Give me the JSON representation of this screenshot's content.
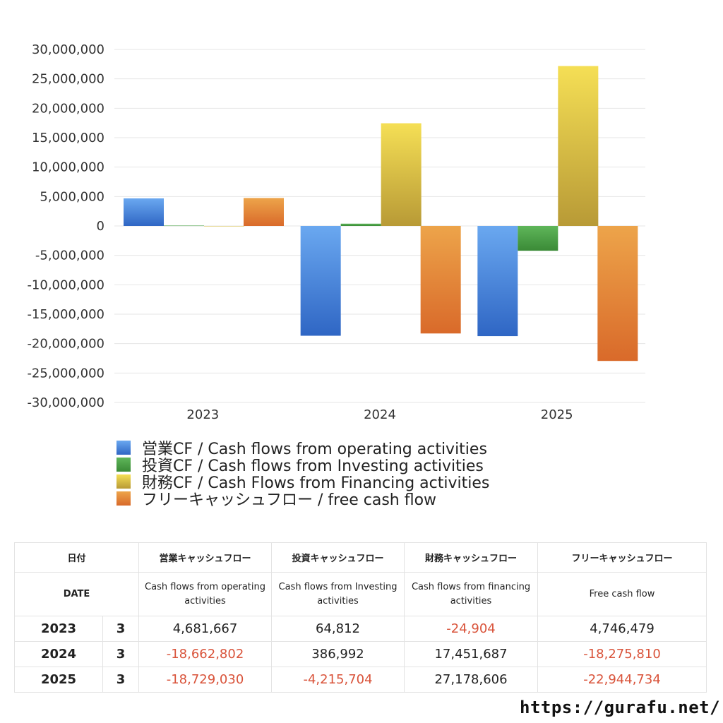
{
  "chart_data": {
    "type": "bar",
    "categories": [
      "2023",
      "2024",
      "2025"
    ],
    "ylim": [
      -30000000,
      30000000
    ],
    "yticks": [
      "30,000,000",
      "25,000,000",
      "20,000,000",
      "15,000,000",
      "10,000,000",
      "5,000,000",
      "0",
      "-5,000,000",
      "-10,000,000",
      "-15,000,000",
      "-20,000,000",
      "-25,000,000",
      "-30,000,000"
    ],
    "grid": true,
    "legend_position": "bottom",
    "series": [
      {
        "name": "営業CF / Cash flows from operating activities",
        "values": [
          4681667,
          -18662802,
          -18729030
        ],
        "color_top": "#6aa8f0",
        "color_bottom": "#2f66c4"
      },
      {
        "name": "投資CF / Cash flows from Investing activities",
        "values": [
          64812,
          386992,
          -4215704
        ],
        "color_top": "#5fb65a",
        "color_bottom": "#3a8a36"
      },
      {
        "name": "財務CF / Cash Flows from Financing activities",
        "values": [
          -24904,
          17451687,
          27178606
        ],
        "color_top": "#f5df55",
        "color_bottom": "#b89a36"
      },
      {
        "name": "フリーキャッシュフロー / free cash flow",
        "values": [
          4746479,
          -18275810,
          -22944734
        ],
        "color_top": "#eda44a",
        "color_bottom": "#d96a2a"
      }
    ]
  },
  "table": {
    "header_jp": {
      "date": "日付",
      "op": "営業キャッシュフロー",
      "inv": "投資キャッシュフロー",
      "fin": "財務キャッシュフロー",
      "free": "フリーキャッシュフロー"
    },
    "header_en": {
      "date": "DATE",
      "op": "Cash flows from operating activities",
      "inv": "Cash flows from Investing activities",
      "fin": "Cash flows from financing activities",
      "free": "Free cash flow"
    },
    "rows": [
      {
        "year": "2023",
        "month": "3",
        "op": "4,681,667",
        "inv": "64,812",
        "fin": "-24,904",
        "free": "4,746,479"
      },
      {
        "year": "2024",
        "month": "3",
        "op": "-18,662,802",
        "inv": "386,992",
        "fin": "17,451,687",
        "free": "-18,275,810"
      },
      {
        "year": "2025",
        "month": "3",
        "op": "-18,729,030",
        "inv": "-4,215,704",
        "fin": "27,178,606",
        "free": "-22,944,734"
      }
    ]
  },
  "footer": {
    "url": "https://gurafu.net/"
  }
}
